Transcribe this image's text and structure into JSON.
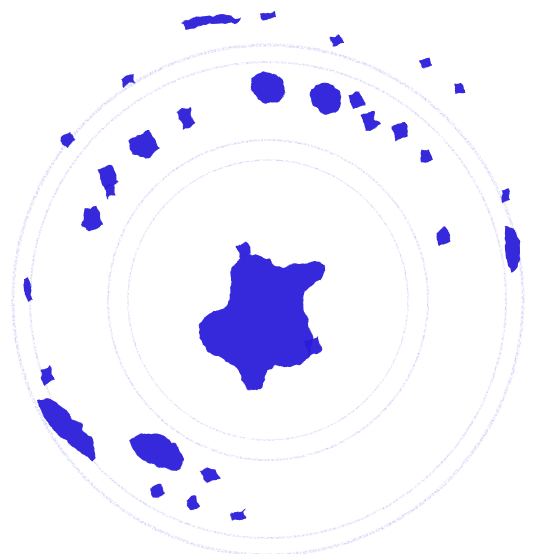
{
  "stamp": {
    "ink_color": "#2a1fd9",
    "faint_ink_color": "#b9b6f0",
    "background_color": "#ffffff",
    "icon": "seal-stamp-icon"
  }
}
